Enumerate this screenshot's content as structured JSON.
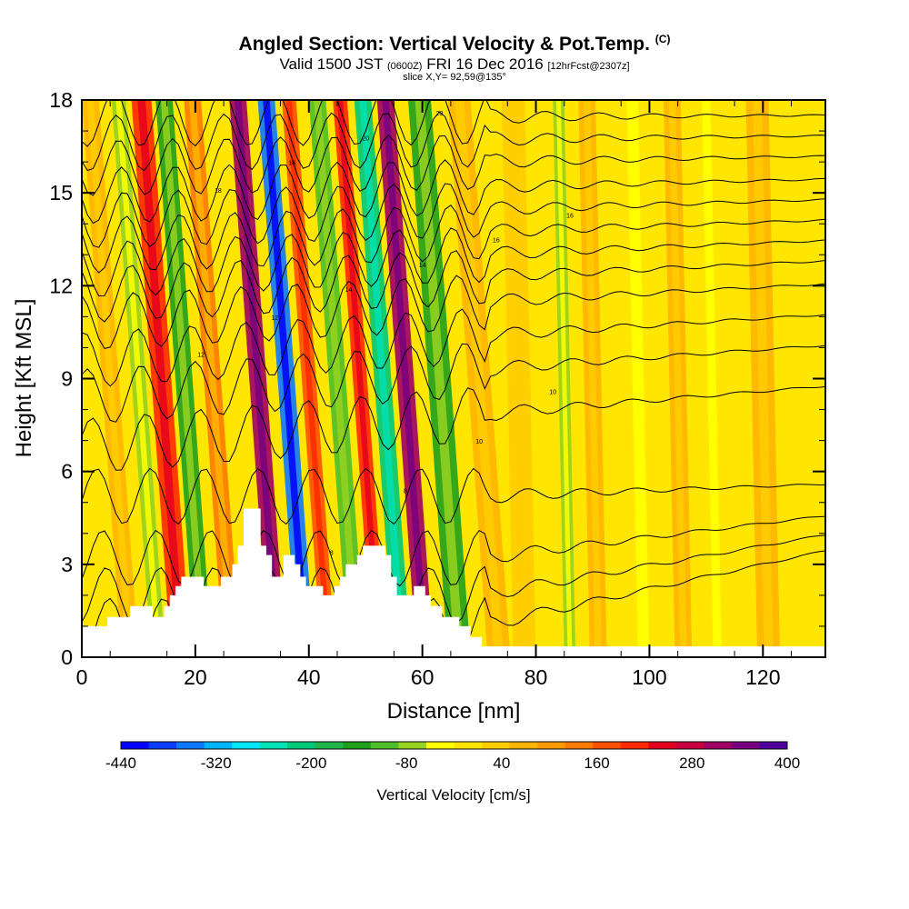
{
  "header": {
    "title": "Angled Section: Vertical Velocity & Pot.Temp.",
    "title_unit": "(C)",
    "valid_prefix": "Valid 1500 JST",
    "valid_utc": "(0600Z)",
    "valid_date": "FRI 16 Dec 2016",
    "forecast": "[12hrFcst@2307z]",
    "slice": "slice X,Y= 92,59@135°"
  },
  "chart_data": {
    "type": "heatmap",
    "xlabel": "Distance [nm]",
    "ylabel": "Height [Kft MSL]",
    "xlim": [
      0,
      131
    ],
    "ylim": [
      0,
      18
    ],
    "x_ticks": [
      0,
      20,
      40,
      60,
      80,
      100,
      120
    ],
    "y_ticks": [
      0,
      3,
      6,
      9,
      12,
      15,
      18
    ],
    "colorbar": {
      "label": "Vertical Velocity [cm/s]",
      "tick_labels": [
        "-440",
        "-320",
        "-200",
        "-80",
        "40",
        "160",
        "280",
        "400"
      ],
      "min": -440,
      "max": 400,
      "colors": [
        "#0000ff",
        "#0a3cff",
        "#0d78ff",
        "#00b4ff",
        "#00e6ff",
        "#00e1b4",
        "#00c878",
        "#20b44a",
        "#1ea01e",
        "#50be28",
        "#96d21e",
        "#ffff00",
        "#ffe600",
        "#ffcc00",
        "#ffb400",
        "#ff9a00",
        "#ff7a00",
        "#ff5000",
        "#ff2800",
        "#e60020",
        "#c80040",
        "#a00064",
        "#780080",
        "#50009a"
      ]
    },
    "bands": [
      {
        "x": 5,
        "w": 3,
        "value": 60
      },
      {
        "x": 10,
        "w": 2.5,
        "value": -60
      },
      {
        "x": 14,
        "w": 3.5,
        "value": 200
      },
      {
        "x": 18,
        "w": 3,
        "value": -140
      },
      {
        "x": 23,
        "w": 3,
        "value": 120
      },
      {
        "x": 31,
        "w": 3,
        "value": 300
      },
      {
        "x": 36,
        "w": 3,
        "value": -340
      },
      {
        "x": 40,
        "w": 2.5,
        "value": 180
      },
      {
        "x": 45,
        "w": 3,
        "value": -120
      },
      {
        "x": 49,
        "w": 2.5,
        "value": 200
      },
      {
        "x": 53,
        "w": 3,
        "value": -200
      },
      {
        "x": 57,
        "w": 3,
        "value": 300
      },
      {
        "x": 63,
        "w": 4,
        "value": -140
      },
      {
        "x": 70,
        "w": 4,
        "value": 60
      },
      {
        "x": 77,
        "w": 4,
        "value": 40
      },
      {
        "x": 85,
        "w": 2,
        "value": -60
      },
      {
        "x": 90,
        "w": 3,
        "value": 60
      },
      {
        "x": 98,
        "w": 2,
        "value": -40
      },
      {
        "x": 105,
        "w": 3,
        "value": 80
      },
      {
        "x": 111,
        "w": 1.5,
        "value": -40
      },
      {
        "x": 120,
        "w": 4,
        "value": 60
      }
    ],
    "terrain": [
      [
        0,
        1.0
      ],
      [
        4.5,
        1.0
      ],
      [
        4.5,
        1.3
      ],
      [
        8.5,
        1.3
      ],
      [
        8.5,
        1.65
      ],
      [
        12.5,
        1.65
      ],
      [
        12.5,
        1.3
      ],
      [
        14.5,
        1.3
      ],
      [
        14.5,
        1.65
      ],
      [
        15.5,
        1.65
      ],
      [
        15.5,
        2.0
      ],
      [
        16.5,
        2.0
      ],
      [
        16.5,
        2.3
      ],
      [
        17.5,
        2.3
      ],
      [
        17.5,
        2.6
      ],
      [
        21.5,
        2.6
      ],
      [
        21.5,
        2.3
      ],
      [
        24.5,
        2.3
      ],
      [
        24.5,
        2.6
      ],
      [
        26.5,
        2.6
      ],
      [
        26.5,
        3.0
      ],
      [
        27.5,
        3.0
      ],
      [
        27.5,
        3.6
      ],
      [
        28.5,
        3.6
      ],
      [
        28.5,
        4.8
      ],
      [
        31.5,
        4.8
      ],
      [
        31.5,
        3.6
      ],
      [
        32.5,
        3.6
      ],
      [
        32.5,
        3.3
      ],
      [
        33.5,
        3.3
      ],
      [
        33.5,
        2.6
      ],
      [
        35.5,
        2.6
      ],
      [
        35.5,
        3.3
      ],
      [
        37.5,
        3.3
      ],
      [
        37.5,
        3.0
      ],
      [
        38.5,
        3.0
      ],
      [
        38.5,
        2.6
      ],
      [
        39.5,
        2.6
      ],
      [
        39.5,
        2.3
      ],
      [
        42.5,
        2.3
      ],
      [
        42.5,
        2.0
      ],
      [
        44.5,
        2.0
      ],
      [
        44.5,
        2.3
      ],
      [
        45.5,
        2.3
      ],
      [
        45.5,
        2.6
      ],
      [
        46.5,
        2.6
      ],
      [
        46.5,
        3.0
      ],
      [
        48.5,
        3.0
      ],
      [
        48.5,
        3.3
      ],
      [
        49.5,
        3.3
      ],
      [
        49.5,
        3.6
      ],
      [
        53.5,
        3.6
      ],
      [
        53.5,
        3.3
      ],
      [
        54.5,
        3.3
      ],
      [
        54.5,
        2.6
      ],
      [
        55.5,
        2.6
      ],
      [
        55.5,
        2.0
      ],
      [
        58.5,
        2.0
      ],
      [
        58.5,
        2.3
      ],
      [
        60.5,
        2.3
      ],
      [
        60.5,
        2.0
      ],
      [
        61.5,
        2.0
      ],
      [
        61.5,
        1.65
      ],
      [
        63.5,
        1.65
      ],
      [
        63.5,
        1.3
      ],
      [
        66.5,
        1.3
      ],
      [
        66.5,
        1.0
      ],
      [
        68.5,
        1.0
      ],
      [
        68.5,
        0.65
      ],
      [
        70.5,
        0.65
      ],
      [
        70.5,
        0.35
      ],
      [
        131,
        0.35
      ],
      [
        131,
        0
      ],
      [
        0,
        0
      ]
    ],
    "isotherms": [
      {
        "y0": 1.0,
        "label": "6"
      },
      {
        "y0": 2.0,
        "label": "6"
      },
      {
        "y0": 3.2,
        "label": "8"
      },
      {
        "y0": 5.2,
        "label": "8"
      },
      {
        "y0": 6.8,
        "label": "10"
      },
      {
        "y0": 8.4,
        "label": "10"
      },
      {
        "y0": 9.6,
        "label": "12"
      },
      {
        "y0": 10.8,
        "label": "12"
      },
      {
        "y0": 11.7,
        "label": "14"
      },
      {
        "y0": 12.5,
        "label": "14"
      },
      {
        "y0": 13.3,
        "label": "16"
      },
      {
        "y0": 14.1,
        "label": "16"
      },
      {
        "y0": 14.9,
        "label": "18"
      },
      {
        "y0": 15.8,
        "label": "18"
      },
      {
        "y0": 16.6,
        "label": "20"
      },
      {
        "y0": 17.4,
        "label": "20"
      }
    ]
  }
}
